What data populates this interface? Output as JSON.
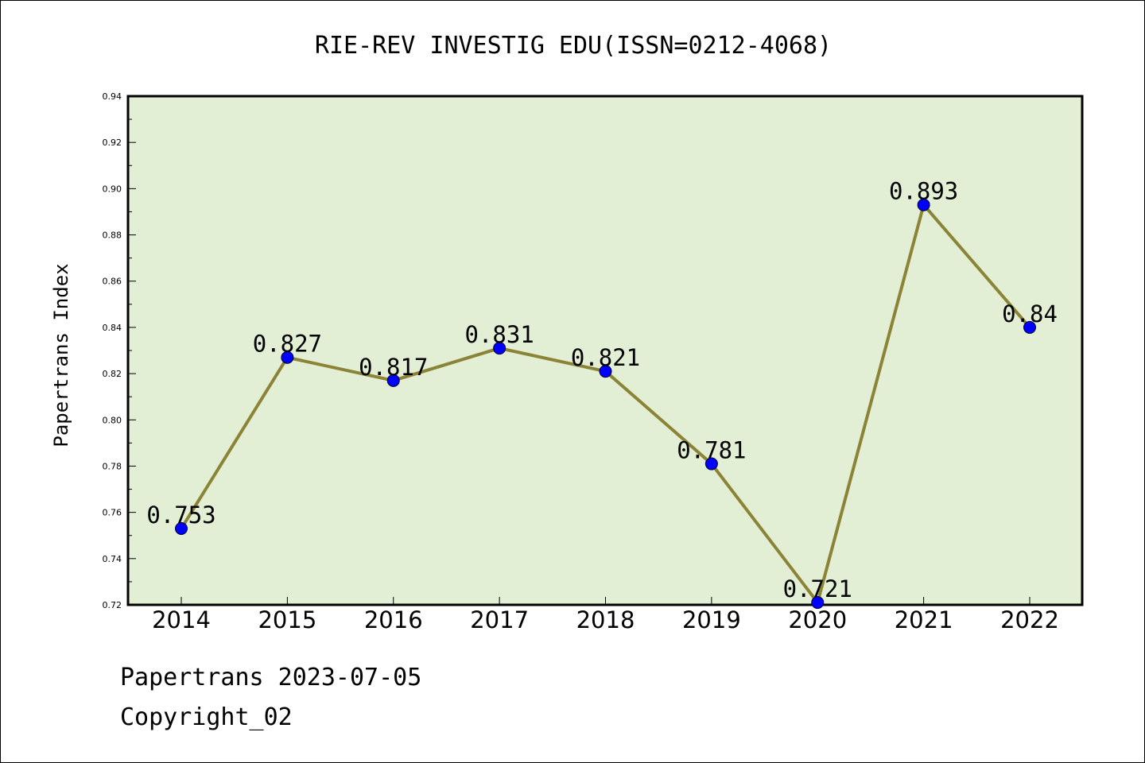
{
  "chart_data": {
    "type": "line",
    "title": "RIE-REV INVESTIG EDU(ISSN=0212-4068)",
    "xlabel": "",
    "ylabel": "Papertrans Index",
    "categories": [
      "2014",
      "2015",
      "2016",
      "2017",
      "2018",
      "2019",
      "2020",
      "2021",
      "2022"
    ],
    "series": [
      {
        "values": [
          0.753,
          0.827,
          0.817,
          0.831,
          0.821,
          0.781,
          0.721,
          0.893,
          0.84
        ],
        "labels": [
          "0.753",
          "0.827",
          "0.817",
          "0.831",
          "0.821",
          "0.781",
          "0.721",
          "0.893",
          "0.84"
        ]
      }
    ],
    "ylim": [
      0.72,
      0.94
    ],
    "yticks": [
      "0.72",
      "0.74",
      "0.76",
      "0.78",
      "0.80",
      "0.82",
      "0.84",
      "0.86",
      "0.88",
      "0.90",
      "0.92",
      "0.94"
    ],
    "grid": false,
    "colors": {
      "plot_background": "#e2efd5",
      "line": "#8b8436",
      "marker": "#0000ff"
    }
  },
  "footer": {
    "date_text": "Papertrans 2023-07-05",
    "copyright_text": "Copyright_02"
  }
}
